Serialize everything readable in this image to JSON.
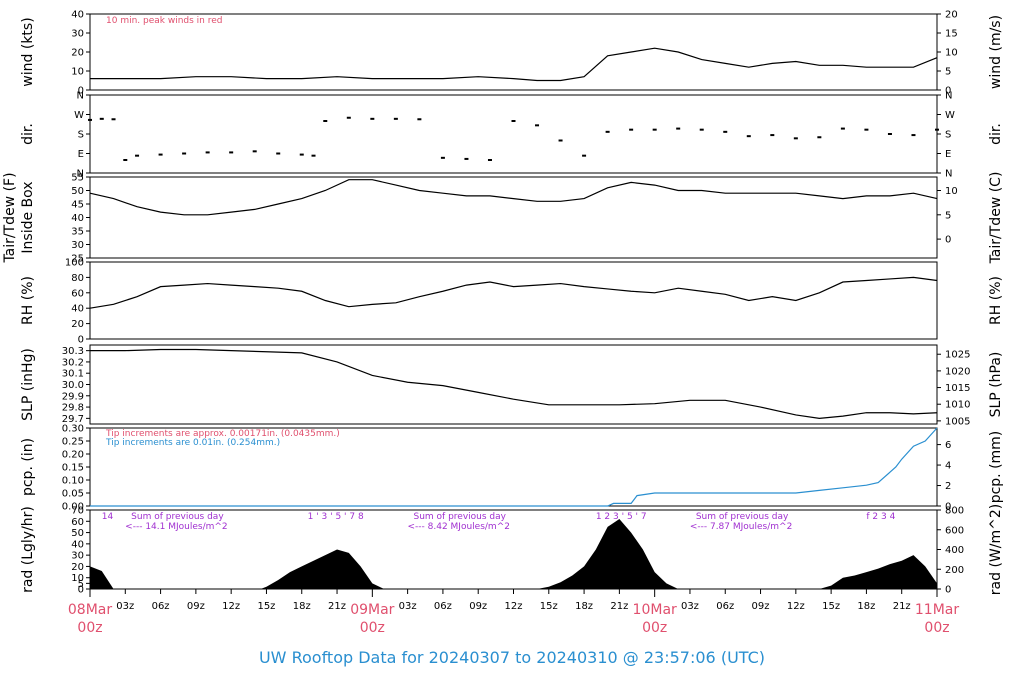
{
  "title": "UW Rooftop Data for 20240307  to  20240310 @ 23:57:06  (UTC)",
  "colors": {
    "peak": "#e0506e",
    "rain": "#2a8fd0",
    "trace": "#000000",
    "annot": "#a030d0",
    "day": "#e0506e",
    "title": "#2a8fd0"
  },
  "x_axis": {
    "ticks": [
      "03z",
      "06z",
      "09z",
      "12z",
      "15z",
      "18z",
      "21z",
      "03z",
      "06z",
      "09z",
      "12z",
      "15z",
      "18z",
      "21z",
      "03z",
      "06z",
      "09z",
      "12z",
      "15z",
      "18z",
      "21z"
    ],
    "tick_hours": [
      3,
      6,
      9,
      12,
      15,
      18,
      21,
      27,
      30,
      33,
      36,
      39,
      42,
      45,
      51,
      54,
      57,
      60,
      63,
      66,
      69
    ],
    "days": [
      {
        "label": "08Mar",
        "sub": "00z",
        "hour": 0
      },
      {
        "label": "09Mar",
        "sub": "00z",
        "hour": 24
      },
      {
        "label": "10Mar",
        "sub": "00z",
        "hour": 48
      },
      {
        "label": "11Mar",
        "sub": "00z",
        "hour": 72
      }
    ],
    "range_hours": [
      0,
      72
    ]
  },
  "chart_data": [
    {
      "type": "line",
      "ylabel": "wind (kts)",
      "ylabel_right": "wind (m/s)",
      "annotation": "10 min. peak winds in red",
      "ylim": [
        0,
        40
      ],
      "yticks": [
        0,
        10,
        20,
        30,
        40
      ],
      "yticks_right": [
        "0",
        "5",
        "10",
        "15",
        "20"
      ],
      "series": [
        {
          "x": [
            0,
            3,
            6,
            9,
            12,
            15,
            18,
            21,
            24,
            27,
            30,
            33,
            36,
            38,
            40,
            42,
            44,
            46,
            48,
            50,
            52,
            54,
            56,
            58,
            60,
            62,
            64,
            66,
            68,
            70,
            72
          ],
          "values": [
            6,
            6,
            6,
            7,
            7,
            6,
            6,
            7,
            6,
            6,
            6,
            7,
            6,
            5,
            5,
            7,
            18,
            20,
            22,
            20,
            16,
            14,
            12,
            14,
            15,
            13,
            13,
            12,
            12,
            12,
            17
          ]
        }
      ]
    },
    {
      "type": "scatter",
      "ylabel": "dir.",
      "ylabel_right": "dir.",
      "ylim": [
        0,
        360
      ],
      "yticks": [
        "N",
        "E",
        "S",
        "W",
        "N"
      ],
      "series": [
        {
          "x": [
            0,
            1,
            2,
            3,
            4,
            6,
            8,
            10,
            12,
            14,
            16,
            18,
            19,
            20,
            22,
            24,
            26,
            28,
            30,
            32,
            34,
            36,
            38,
            40,
            42,
            44,
            46,
            48,
            50,
            52,
            54,
            56,
            58,
            60,
            62,
            64,
            66,
            68,
            70,
            72
          ],
          "values": [
            245,
            250,
            248,
            60,
            80,
            85,
            90,
            95,
            95,
            100,
            90,
            85,
            80,
            240,
            255,
            250,
            250,
            248,
            70,
            65,
            60,
            240,
            220,
            150,
            80,
            190,
            200,
            200,
            205,
            200,
            190,
            170,
            175,
            160,
            165,
            205,
            200,
            180,
            175,
            200
          ]
        }
      ]
    },
    {
      "type": "line",
      "ylabel": "Inside Box",
      "ylabel_outer": "Tair/Tdew (F)",
      "ylabel_right": "Tair/Tdew (C)",
      "ylim": [
        25,
        55
      ],
      "yticks": [
        25,
        30,
        35,
        40,
        45,
        50,
        55
      ],
      "yticks_right": [
        "0",
        "5",
        "10"
      ],
      "series": [
        {
          "x": [
            0,
            2,
            4,
            6,
            8,
            10,
            12,
            14,
            16,
            18,
            20,
            22,
            24,
            26,
            28,
            30,
            32,
            34,
            36,
            38,
            40,
            42,
            44,
            46,
            48,
            50,
            52,
            54,
            56,
            58,
            60,
            62,
            64,
            66,
            68,
            70,
            72
          ],
          "values": [
            49,
            47,
            44,
            42,
            41,
            41,
            42,
            43,
            45,
            47,
            50,
            54,
            54,
            52,
            50,
            49,
            48,
            48,
            47,
            46,
            46,
            47,
            51,
            53,
            52,
            50,
            50,
            49,
            49,
            49,
            49,
            48,
            47,
            48,
            48,
            49,
            47
          ]
        }
      ]
    },
    {
      "type": "line",
      "ylabel": "RH (%)",
      "ylabel_right": "RH (%)",
      "ylim": [
        0,
        100
      ],
      "yticks": [
        0,
        20,
        40,
        60,
        80,
        100
      ],
      "series": [
        {
          "x": [
            0,
            2,
            4,
            6,
            8,
            10,
            12,
            14,
            16,
            18,
            20,
            22,
            24,
            26,
            28,
            30,
            32,
            34,
            36,
            38,
            40,
            42,
            44,
            46,
            48,
            50,
            52,
            54,
            56,
            58,
            60,
            62,
            64,
            66,
            68,
            70,
            72
          ],
          "values": [
            40,
            45,
            55,
            68,
            70,
            72,
            70,
            68,
            66,
            62,
            50,
            42,
            45,
            47,
            55,
            62,
            70,
            74,
            68,
            70,
            72,
            68,
            65,
            62,
            60,
            66,
            62,
            58,
            50,
            55,
            50,
            60,
            74,
            76,
            78,
            80,
            76
          ]
        }
      ]
    },
    {
      "type": "line",
      "ylabel": "SLP (inHg)",
      "ylabel_right": "SLP (hPa)",
      "ylim": [
        29.65,
        30.35
      ],
      "yticks": [
        29.7,
        29.8,
        29.9,
        30.0,
        30.1,
        30.2,
        30.3
      ],
      "yticks_right": [
        "1005",
        "1010",
        "1015",
        "1020",
        "1025"
      ],
      "series": [
        {
          "x": [
            0,
            3,
            6,
            9,
            12,
            15,
            18,
            21,
            24,
            27,
            30,
            33,
            36,
            39,
            42,
            45,
            48,
            51,
            54,
            57,
            60,
            62,
            64,
            66,
            68,
            70,
            72
          ],
          "values": [
            30.3,
            30.3,
            30.31,
            30.31,
            30.3,
            30.29,
            30.28,
            30.2,
            30.08,
            30.02,
            29.99,
            29.93,
            29.87,
            29.82,
            29.82,
            29.82,
            29.83,
            29.86,
            29.86,
            29.8,
            29.73,
            29.7,
            29.72,
            29.75,
            29.75,
            29.74,
            29.75
          ]
        }
      ]
    },
    {
      "type": "line",
      "ylabel": "pcp. (in)",
      "ylabel_right": "pcp. (mm)",
      "annotations": [
        "Tip increments are approx. 0.00171in. (0.0435mm.)",
        "Tip increments are 0.01in. (0.254mm.)"
      ],
      "ylim": [
        0,
        0.3
      ],
      "yticks": [
        0.0,
        0.05,
        0.1,
        0.15,
        0.2,
        0.25,
        0.3
      ],
      "yticks_right": [
        "0",
        "2",
        "4",
        "6"
      ],
      "series": [
        {
          "x": [
            0,
            44,
            44.5,
            46,
            46.5,
            48,
            60,
            62,
            64,
            66,
            67,
            68,
            68.5,
            69,
            70,
            71,
            72
          ],
          "values": [
            0,
            0,
            0.01,
            0.01,
            0.04,
            0.05,
            0.05,
            0.06,
            0.07,
            0.08,
            0.09,
            0.13,
            0.15,
            0.18,
            0.23,
            0.25,
            0.3
          ]
        }
      ]
    },
    {
      "type": "area",
      "ylabel": "rad (Lgly/hr)",
      "ylabel_right": "rad (W/m^2)",
      "ylim": [
        0,
        70
      ],
      "yticks": [
        0,
        5,
        10,
        20,
        30,
        40,
        50,
        60,
        70
      ],
      "yticks_right": [
        "0",
        "200",
        "400",
        "600",
        "800"
      ],
      "daily_sums": [
        {
          "text": "Sum of previous day",
          "value": "<--- 14.1 MJoules/m^2",
          "hour": 3.5
        },
        {
          "text": "Sum of previous day",
          "value": "<--- 8.42 MJoules/m^2",
          "hour": 27.5
        },
        {
          "text": "Sum of previous day",
          "value": "<--- 7.87 MJoules/m^2",
          "hour": 51.5
        }
      ],
      "hour_marks": [
        {
          "hours": "14",
          "at": 1
        },
        {
          "hours": "1 ' 3 ' 5 ' 7 8",
          "at": 18.5
        },
        {
          "hours": "1 2 3 ' 5 ' 7",
          "at": 43
        },
        {
          "hours": "f 2 3 4",
          "at": 66
        }
      ],
      "series": [
        {
          "x": [
            0,
            1,
            2,
            14.5,
            15,
            16,
            17,
            18,
            19,
            20,
            21,
            22,
            23,
            24,
            25,
            38,
            39,
            40,
            41,
            42,
            43,
            44,
            45,
            46,
            47,
            48,
            49,
            50,
            62,
            63,
            64,
            65,
            66,
            67,
            68,
            69,
            70,
            71,
            72
          ],
          "values": [
            20,
            16,
            0,
            0,
            2,
            8,
            15,
            20,
            25,
            30,
            35,
            32,
            20,
            5,
            0,
            0,
            2,
            6,
            12,
            20,
            35,
            55,
            62,
            50,
            35,
            15,
            5,
            0,
            0,
            3,
            10,
            12,
            15,
            18,
            22,
            25,
            30,
            20,
            5
          ]
        }
      ]
    }
  ]
}
